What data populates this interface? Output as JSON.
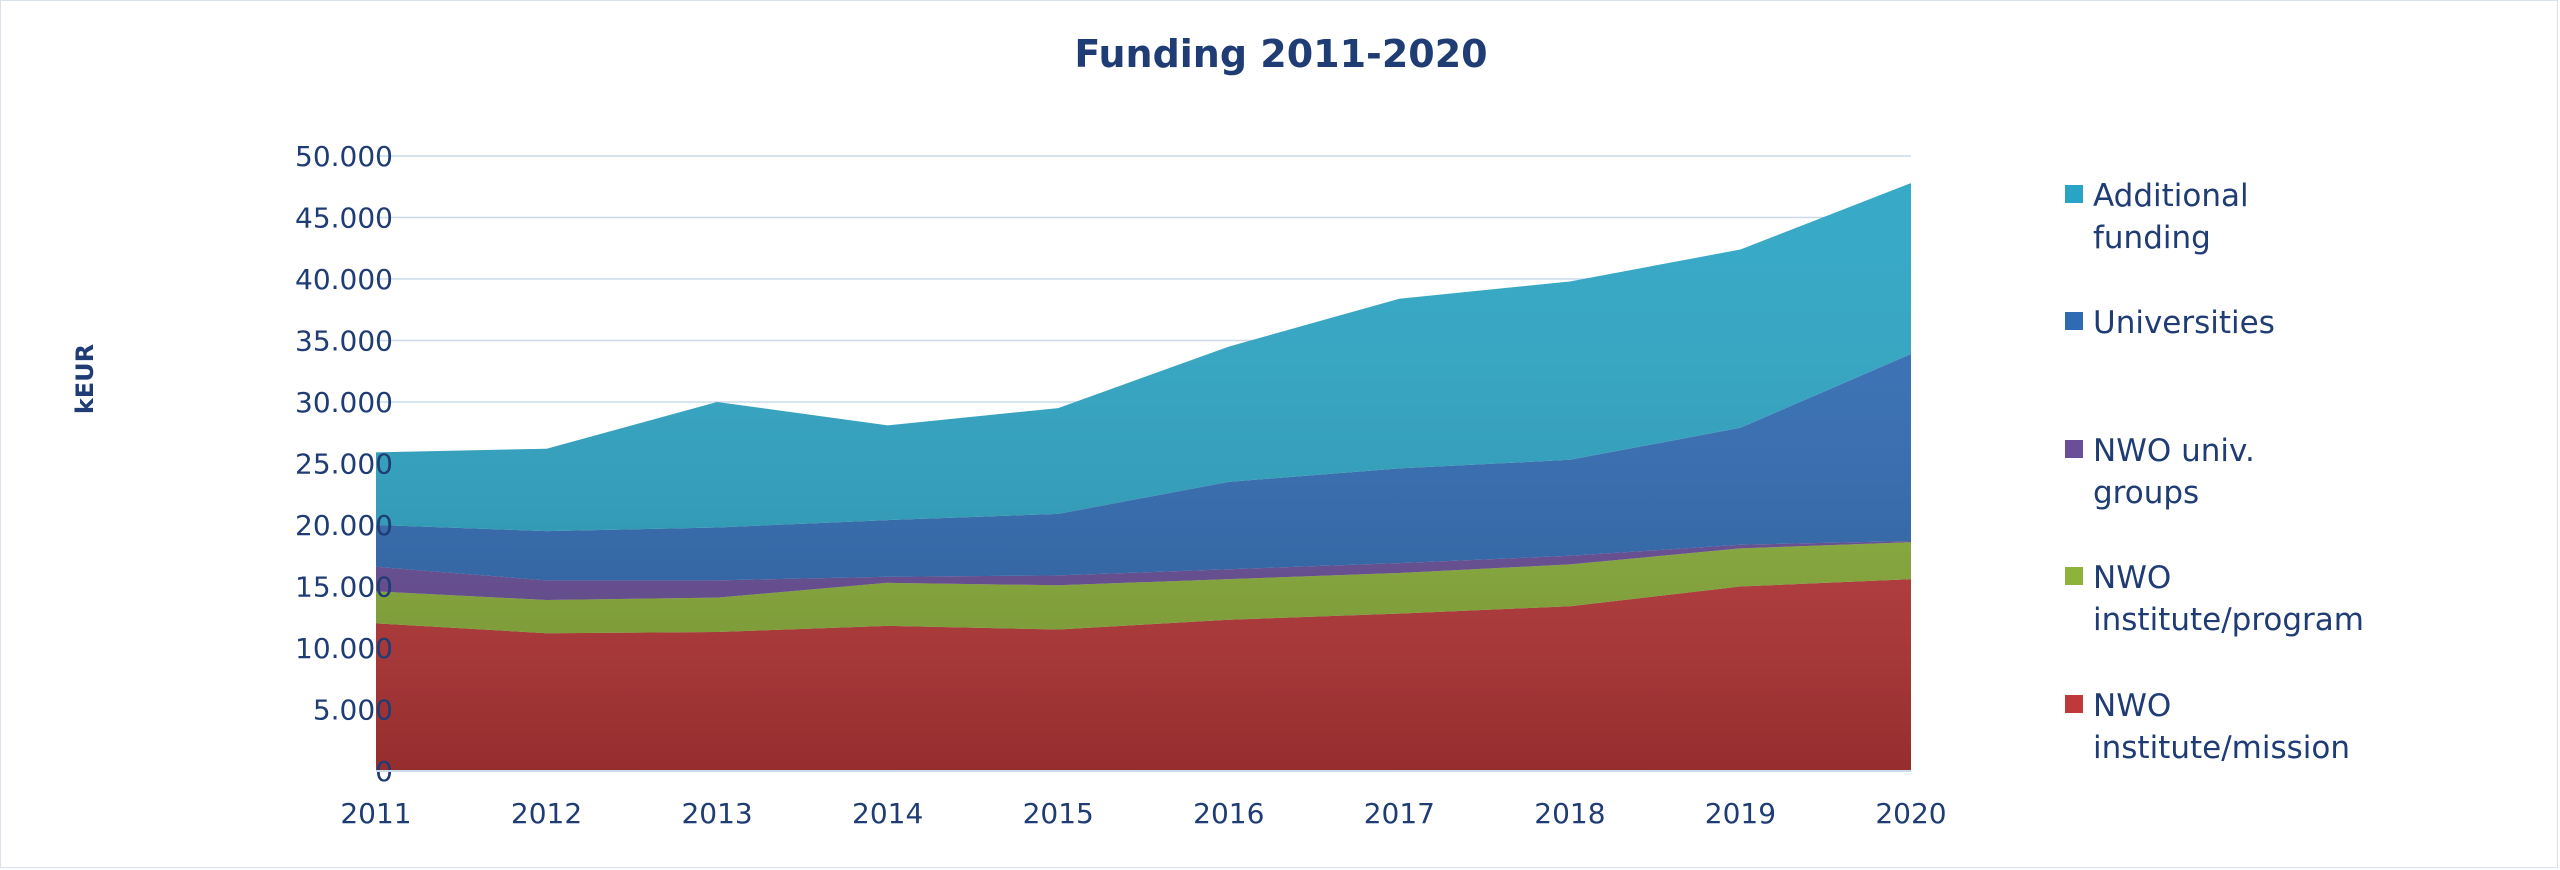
{
  "chart_data": {
    "type": "area",
    "stacked": true,
    "title": "Funding 2011-2020",
    "xlabel": "",
    "ylabel": "kEUR",
    "x": [
      "2011",
      "2012",
      "2013",
      "2014",
      "2015",
      "2016",
      "2017",
      "2018",
      "2019",
      "2020"
    ],
    "ylim": [
      0,
      50000
    ],
    "yticks": [
      0,
      5000,
      10000,
      15000,
      20000,
      25000,
      30000,
      35000,
      40000,
      45000,
      50000
    ],
    "ytick_labels": [
      "0",
      "5.000",
      "10.000",
      "15.000",
      "20.000",
      "25.000",
      "30.000",
      "35.000",
      "40.000",
      "45.000",
      "50.000"
    ],
    "grid": true,
    "legend_position": "right",
    "series": [
      {
        "name": "NWO institute/mission",
        "color": "#c0393a",
        "values": [
          12000,
          11200,
          11300,
          11800,
          11500,
          12300,
          12800,
          13400,
          15000,
          15600
        ]
      },
      {
        "name": "NWO institute/program",
        "color": "#8db33a",
        "values": [
          2600,
          2700,
          2800,
          3500,
          3600,
          3300,
          3300,
          3400,
          3100,
          3000
        ]
      },
      {
        "name": "NWO univ. groups",
        "color": "#6a4e9a",
        "values": [
          2000,
          1600,
          1400,
          500,
          800,
          800,
          800,
          700,
          300,
          100
        ]
      },
      {
        "name": "Universities",
        "color": "#2f6bb5",
        "values": [
          3400,
          4000,
          4300,
          4600,
          5000,
          7100,
          7700,
          7800,
          9500,
          15200
        ]
      },
      {
        "name": "Additional funding",
        "color": "#2aa4c4",
        "values": [
          5900,
          6700,
          10200,
          7700,
          8600,
          11000,
          13800,
          14500,
          14500,
          13900
        ]
      }
    ]
  }
}
